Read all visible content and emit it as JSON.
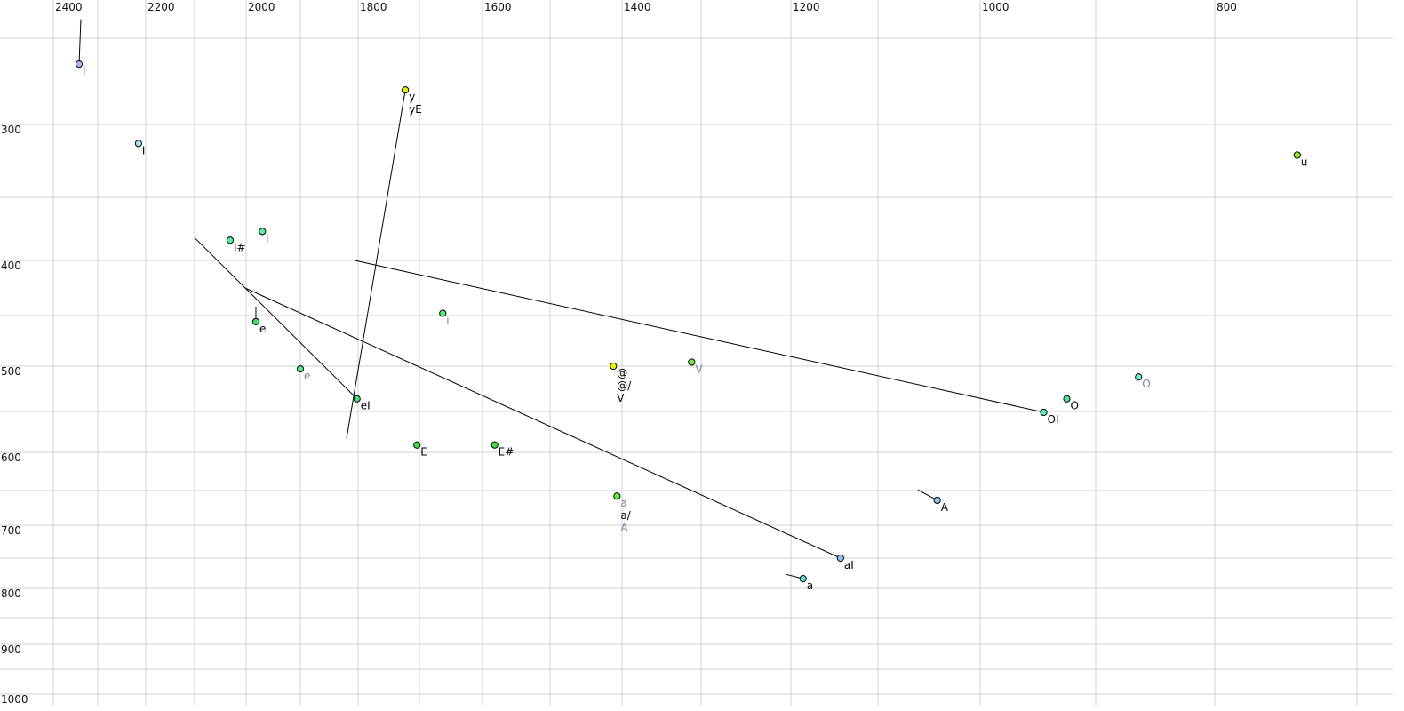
{
  "chart_data": {
    "type": "scatter",
    "title": "",
    "xlabel": "",
    "ylabel": "",
    "x_axis": {
      "reversed": true,
      "position": "top",
      "scale": "nonlinear",
      "range": [
        2450,
        700
      ],
      "tick_labels": [
        2400,
        2200,
        2000,
        1800,
        1600,
        1400,
        1200,
        1000,
        800
      ],
      "grid_step": 100
    },
    "y_axis": {
      "reversed": false,
      "position": "left",
      "scale": "nonlinear",
      "range": [
        230,
        1000
      ],
      "tick_labels": [
        300,
        400,
        500,
        600,
        700,
        800,
        900,
        1000
      ],
      "grid_step": 50
    },
    "grid": true,
    "colors": {
      "grid": "#d0d0d0",
      "primary_label": "#000000",
      "secondary_label": "#8080a0",
      "trajectory": "#000000"
    },
    "points": [
      {
        "f2": 2342,
        "f1": 265,
        "color": "#a8b8f0",
        "labels": [
          {
            "text": "i",
            "style": "primary"
          }
        ],
        "trajectory": [
          2338,
          239
        ]
      },
      {
        "f2": 2215,
        "f1": 313,
        "color": "#a8e0f0",
        "labels": [
          {
            "text": "I",
            "style": "primary"
          }
        ]
      },
      {
        "f2": 1723,
        "f1": 280,
        "color": "#e8f000",
        "labels": [
          {
            "text": "y",
            "style": "primary"
          },
          {
            "text": "yE",
            "style": "primary"
          }
        ],
        "trajectory": [
          1820,
          583
        ]
      },
      {
        "f2": 2031,
        "f1": 384,
        "color": "#50f0a0",
        "labels": [
          {
            "text": "I#",
            "style": "primary"
          }
        ]
      },
      {
        "f2": 1970,
        "f1": 377,
        "color": "#60f0a0",
        "labels": [
          {
            "text": "i",
            "style": "secondary"
          }
        ]
      },
      {
        "f2": 1982,
        "f1": 456,
        "color": "#40e070",
        "labels": [
          {
            "text": "e",
            "style": "primary"
          }
        ],
        "trajectory": [
          1982,
          442
        ]
      },
      {
        "f2": 1900,
        "f1": 503,
        "color": "#50f080",
        "labels": [
          {
            "text": "e",
            "style": "secondary"
          }
        ]
      },
      {
        "f2": 1802,
        "f1": 536,
        "color": "#40e070",
        "labels": [
          {
            "text": "eI",
            "style": "primary"
          }
        ],
        "trajectory": [
          2100,
          382
        ]
      },
      {
        "f2": 1663,
        "f1": 448,
        "color": "#50f070",
        "labels": [
          {
            "text": "i",
            "style": "secondary"
          }
        ]
      },
      {
        "f2": 1704,
        "f1": 591,
        "color": "#40e040",
        "labels": [
          {
            "text": "E",
            "style": "primary"
          }
        ]
      },
      {
        "f2": 1582,
        "f1": 591,
        "color": "#40e040",
        "labels": [
          {
            "text": "E#",
            "style": "primary"
          }
        ]
      },
      {
        "f2": 1412,
        "f1": 500,
        "color": "#f0f000",
        "labels": [
          {
            "text": "@",
            "style": "primary"
          },
          {
            "text": "@/",
            "style": "primary"
          },
          {
            "text": "V",
            "style": "primary"
          }
        ]
      },
      {
        "f2": 1312,
        "f1": 496,
        "color": "#70f040",
        "labels": [
          {
            "text": "V",
            "style": "secondary"
          }
        ]
      },
      {
        "f2": 1407,
        "f1": 658,
        "color": "#60f040",
        "labels": [
          {
            "text": "a",
            "style": "secondary"
          },
          {
            "text": "a/",
            "style": "primary"
          },
          {
            "text": "A",
            "style": "secondary"
          }
        ]
      },
      {
        "f2": 1143,
        "f1": 750,
        "color": "#90c0f0",
        "labels": [
          {
            "text": "aI",
            "style": "primary"
          }
        ],
        "trajectory": [
          2002,
          425
        ]
      },
      {
        "f2": 1186,
        "f1": 784,
        "color": "#60e0e0",
        "labels": [
          {
            "text": "a",
            "style": "primary"
          }
        ],
        "trajectory": [
          1205,
          777
        ]
      },
      {
        "f2": 1042,
        "f1": 664,
        "color": "#90c8f0",
        "labels": [
          {
            "text": "A",
            "style": "primary"
          }
        ],
        "trajectory": [
          1061,
          649
        ]
      },
      {
        "f2": 945,
        "f1": 551,
        "color": "#60f0c0",
        "labels": [
          {
            "text": "OI",
            "style": "primary"
          }
        ],
        "trajectory": [
          1806,
          400
        ]
      },
      {
        "f2": 925,
        "f1": 536,
        "color": "#50e0a0",
        "labels": [
          {
            "text": "O",
            "style": "primary"
          }
        ]
      },
      {
        "f2": 864,
        "f1": 512,
        "color": "#70f0d0",
        "labels": [
          {
            "text": "O",
            "style": "secondary"
          }
        ]
      },
      {
        "f2": 742,
        "f1": 321,
        "color": "#90f020",
        "labels": [
          {
            "text": "u",
            "style": "primary"
          }
        ]
      }
    ]
  }
}
